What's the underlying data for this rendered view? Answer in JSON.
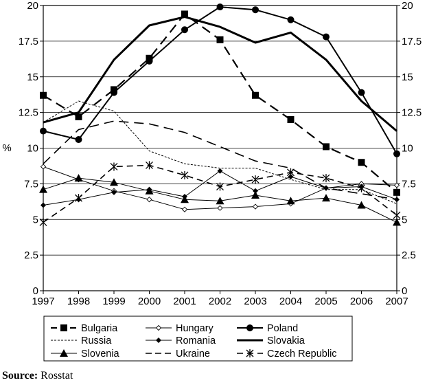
{
  "chart_data": {
    "type": "line",
    "x": [
      1997,
      1998,
      1999,
      2000,
      2001,
      2002,
      2003,
      2004,
      2005,
      2006,
      2007
    ],
    "ylim": [
      0,
      20
    ],
    "yticks": [
      "0",
      "2.5",
      "5",
      "7.5",
      "10",
      "12.5",
      "15",
      "17.5",
      "20"
    ],
    "ylabel": "%",
    "grid": true,
    "legend_position": "bottom",
    "series": [
      {
        "name": "Bulgaria",
        "values": [
          13.7,
          12.2,
          14.1,
          16.3,
          19.4,
          17.6,
          13.7,
          12.0,
          10.1,
          9.0,
          6.9
        ]
      },
      {
        "name": "Hungary",
        "values": [
          8.7,
          7.8,
          7.0,
          6.4,
          5.7,
          5.8,
          5.9,
          6.1,
          7.2,
          7.5,
          7.4
        ]
      },
      {
        "name": "Poland",
        "values": [
          11.2,
          10.6,
          13.9,
          16.1,
          18.3,
          19.9,
          19.7,
          19.0,
          17.8,
          13.9,
          9.6
        ]
      },
      {
        "name": "Russia",
        "values": [
          11.8,
          13.3,
          12.6,
          9.8,
          8.9,
          8.6,
          8.6,
          7.8,
          7.1,
          7.1,
          6.1
        ]
      },
      {
        "name": "Romania",
        "values": [
          6.0,
          6.4,
          6.9,
          7.1,
          6.6,
          8.4,
          7.0,
          8.0,
          7.2,
          7.3,
          6.4
        ]
      },
      {
        "name": "Slovakia",
        "values": [
          11.8,
          12.5,
          16.2,
          18.6,
          19.2,
          18.5,
          17.4,
          18.1,
          16.2,
          13.3,
          11.2
        ]
      },
      {
        "name": "Slovenia",
        "values": [
          7.1,
          7.9,
          7.6,
          7.0,
          6.4,
          6.3,
          6.7,
          6.3,
          6.5,
          6.0,
          4.8
        ]
      },
      {
        "name": "Ukraine",
        "values": [
          8.9,
          11.3,
          11.9,
          11.7,
          11.1,
          10.1,
          9.1,
          8.6,
          7.2,
          6.8,
          6.4
        ]
      },
      {
        "name": "Czech Republic",
        "values": [
          4.8,
          6.5,
          8.7,
          8.8,
          8.1,
          7.3,
          7.8,
          8.3,
          7.9,
          7.2,
          5.3
        ]
      }
    ]
  },
  "source": {
    "label": "Source:",
    "text": "Rosstat"
  }
}
